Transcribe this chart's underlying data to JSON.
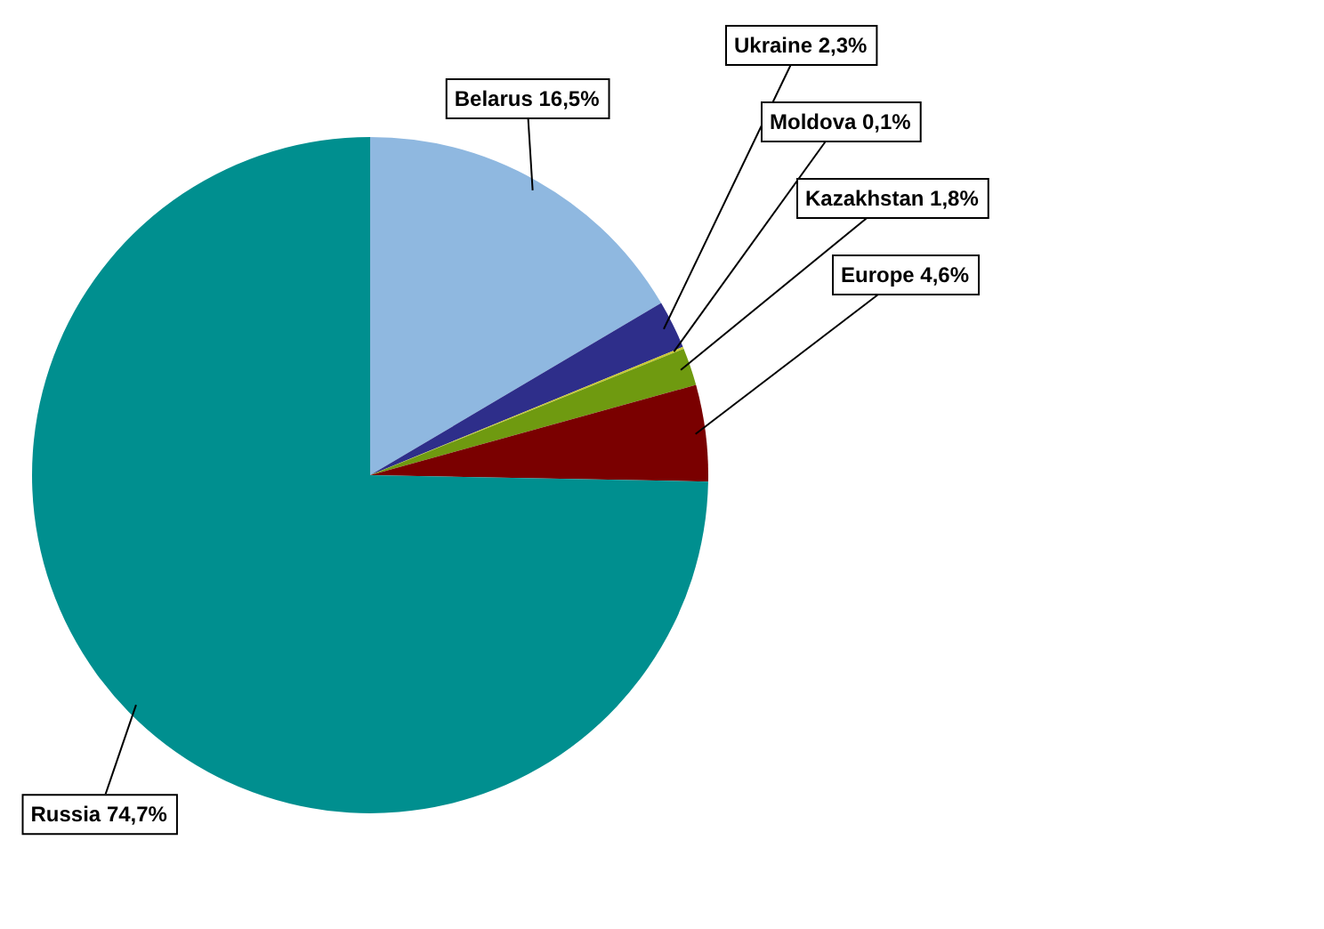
{
  "chart_data": {
    "type": "pie",
    "categories": [
      "Belarus",
      "Ukraine",
      "Moldova",
      "Kazakhstan",
      "Europe",
      "Russia"
    ],
    "values": [
      16.5,
      2.3,
      0.1,
      1.8,
      4.6,
      74.7
    ],
    "value_labels": [
      "16,5%",
      "2,3%",
      "0,1%",
      "1,8%",
      "4,6%",
      "74,7%"
    ],
    "colors": [
      "#8fb8e0",
      "#2e2e8a",
      "#c8c830",
      "#6f9a10",
      "#7a0000",
      "#008f8f"
    ],
    "legend": false
  }
}
